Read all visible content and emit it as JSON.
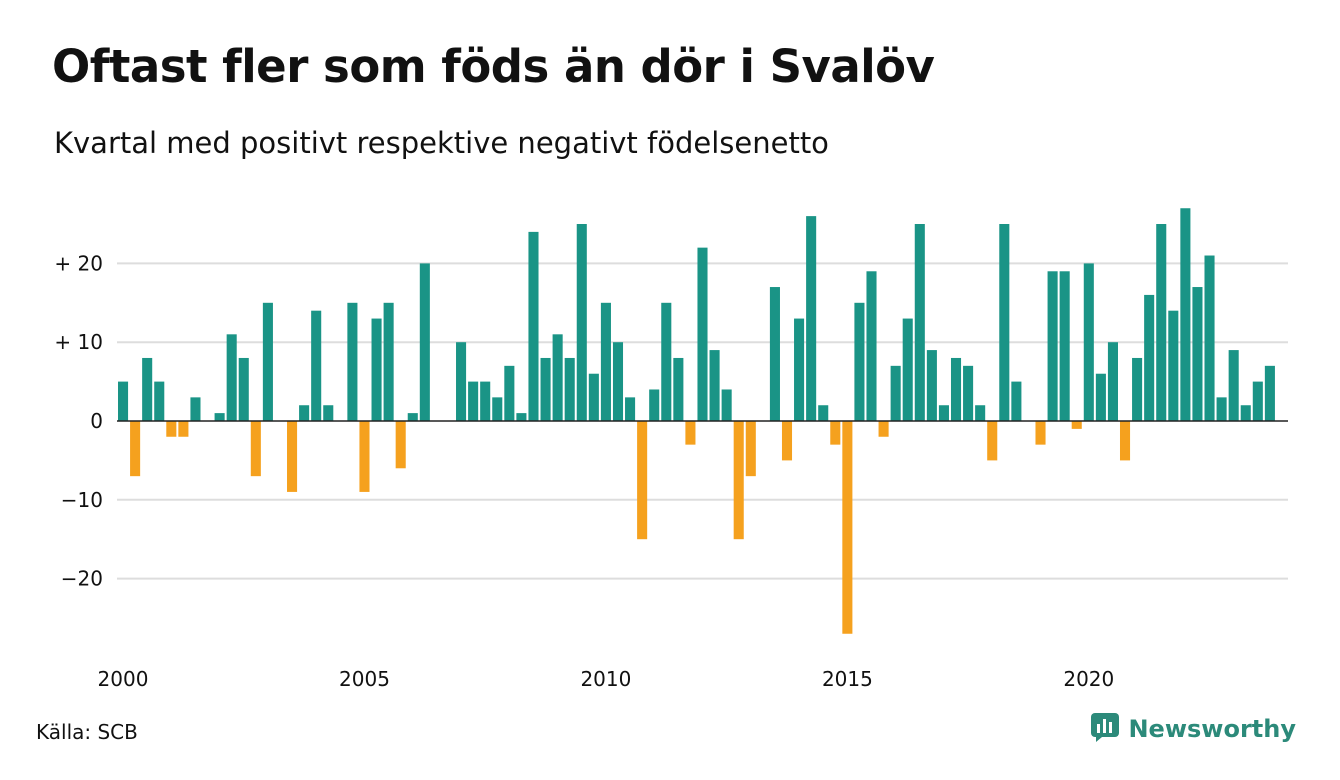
{
  "title": "Oftast fler som föds än dör i Svalöv",
  "subtitle": "Kvartal med positivt respektive negativt födelsenetto",
  "source": "Källa: SCB",
  "brand": "Newsworthy",
  "brand_icon": "newsworthy-logo-icon",
  "colors": {
    "positive": "#1a9486",
    "negative": "#f5a11e",
    "grid": "#dddddd",
    "zero": "#222222",
    "brand": "#2c8a7a"
  },
  "chart_data": {
    "type": "bar",
    "title": "Oftast fler som föds än dör i Svalöv",
    "subtitle": "Kvartal med positivt respektive negativt födelsenetto",
    "xlabel": "",
    "ylabel": "",
    "ylim": [
      -28,
      28
    ],
    "grid": true,
    "x_start_year": 2000,
    "periods_per_year": 4,
    "x_ticks": [
      "2000",
      "2005",
      "2010",
      "2015",
      "2020"
    ],
    "y_ticks": [
      {
        "value": 20,
        "label": "+ 20"
      },
      {
        "value": 10,
        "label": "+ 10"
      },
      {
        "value": 0,
        "label": "0"
      },
      {
        "value": -10,
        "label": "−10"
      },
      {
        "value": -20,
        "label": "−20"
      }
    ],
    "categories": [
      "2000K1",
      "2000K2",
      "2000K3",
      "2000K4",
      "2001K1",
      "2001K2",
      "2001K3",
      "2001K4",
      "2002K1",
      "2002K2",
      "2002K3",
      "2002K4",
      "2003K1",
      "2003K2",
      "2003K3",
      "2003K4",
      "2004K1",
      "2004K2",
      "2004K3",
      "2004K4",
      "2005K1",
      "2005K2",
      "2005K3",
      "2005K4",
      "2006K1",
      "2006K2",
      "2006K3",
      "2006K4",
      "2007K1",
      "2007K2",
      "2007K3",
      "2007K4",
      "2008K1",
      "2008K2",
      "2008K3",
      "2008K4",
      "2009K1",
      "2009K2",
      "2009K3",
      "2009K4",
      "2010K1",
      "2010K2",
      "2010K3",
      "2010K4",
      "2011K1",
      "2011K2",
      "2011K3",
      "2011K4",
      "2012K1",
      "2012K2",
      "2012K3",
      "2012K4",
      "2013K1",
      "2013K2",
      "2013K3",
      "2013K4",
      "2014K1",
      "2014K2",
      "2014K3",
      "2014K4",
      "2015K1",
      "2015K2",
      "2015K3",
      "2015K4",
      "2016K1",
      "2016K2",
      "2016K3",
      "2016K4",
      "2017K1",
      "2017K2",
      "2017K3",
      "2017K4",
      "2018K1",
      "2018K2",
      "2018K3",
      "2018K4",
      "2019K1",
      "2019K2",
      "2019K3",
      "2019K4",
      "2020K1",
      "2020K2",
      "2020K3",
      "2020K4",
      "2021K1",
      "2021K2",
      "2021K3",
      "2021K4",
      "2022K1",
      "2022K2",
      "2022K3",
      "2022K4",
      "2023K1",
      "2023K2",
      "2023K3",
      "2023K4",
      "2024K1"
    ],
    "values": [
      5,
      -7,
      8,
      5,
      -2,
      -2,
      3,
      0,
      1,
      11,
      8,
      -7,
      15,
      0,
      -9,
      2,
      14,
      2,
      0,
      15,
      -9,
      13,
      15,
      -6,
      1,
      20,
      0,
      0,
      10,
      5,
      5,
      3,
      7,
      1,
      24,
      8,
      11,
      8,
      25,
      6,
      15,
      10,
      3,
      -15,
      4,
      15,
      8,
      -3,
      22,
      9,
      4,
      -15,
      -7,
      0,
      17,
      -5,
      13,
      26,
      2,
      -3,
      -27,
      15,
      19,
      -2,
      7,
      13,
      25,
      9,
      2,
      8,
      7,
      2,
      -5,
      25,
      5,
      0,
      -3,
      19,
      19,
      -1,
      20,
      6,
      10,
      -5,
      8,
      16,
      25,
      14,
      27,
      17,
      21,
      3,
      9,
      2,
      5,
      7,
      0
    ]
  }
}
